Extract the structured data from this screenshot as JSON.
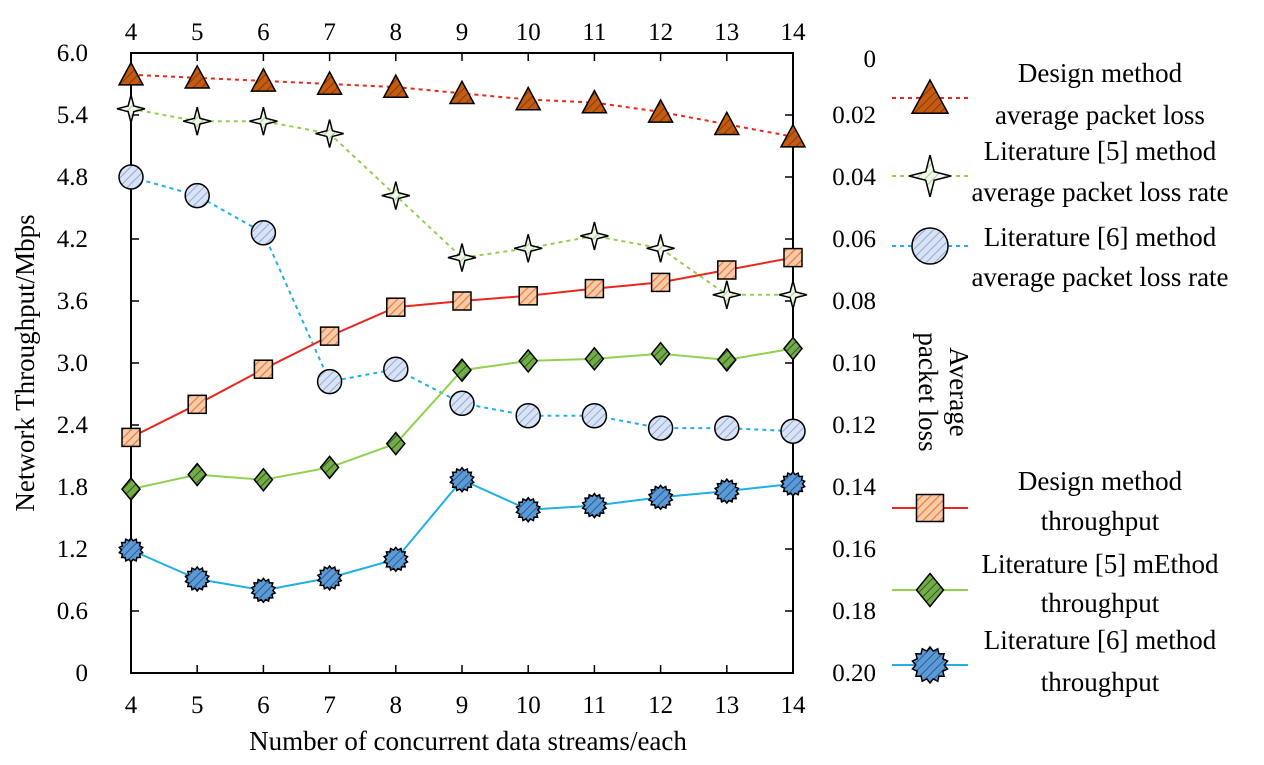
{
  "chart_data": {
    "type": "line",
    "x": [
      4,
      5,
      6,
      7,
      8,
      9,
      10,
      11,
      12,
      13,
      14
    ],
    "xlabel": "Number of concurrent data streams/each",
    "xlim": [
      4,
      14
    ],
    "x_ticks": [
      4,
      5,
      6,
      7,
      8,
      9,
      10,
      11,
      12,
      13,
      14
    ],
    "ylabel_left": "Network Throughput/Mbps",
    "ylim_left": [
      0,
      6.0
    ],
    "y_ticks_left": [
      "0",
      "0.6",
      "1.2",
      "1.8",
      "2.4",
      "3.0",
      "3.6",
      "4.2",
      "4.8",
      "5.4",
      "6.0"
    ],
    "ylabel_right": [
      "Average",
      "packet loss"
    ],
    "ylim_right": [
      0,
      0.2
    ],
    "y_right_inverted": true,
    "y_ticks_right": [
      "0",
      "0.02",
      "0.04",
      "0.06",
      "0.08",
      "0.10",
      "0.12",
      "0.14",
      "0.16",
      "0.18",
      "0.20"
    ],
    "grid": false,
    "legend_position": "right",
    "series": [
      {
        "name": [
          "Design method",
          "average packet loss"
        ],
        "axis": "right",
        "values": [
          0.007,
          0.008,
          0.009,
          0.01,
          0.011,
          0.013,
          0.015,
          0.016,
          0.019,
          0.023,
          0.027
        ],
        "color": "#e8281e",
        "dash": true,
        "marker": "triangle",
        "marker_fill": "#c55a11"
      },
      {
        "name": [
          "Literature [5] method",
          "average packet loss rate"
        ],
        "axis": "right",
        "values": [
          0.018,
          0.022,
          0.022,
          0.026,
          0.046,
          0.066,
          0.063,
          0.059,
          0.063,
          0.078,
          0.078
        ],
        "color": "#92d050",
        "dash": true,
        "marker": "star4",
        "marker_fill": "#e2efda"
      },
      {
        "name": [
          "Literature [6] method",
          "average packet loss rate"
        ],
        "axis": "right",
        "values": [
          0.04,
          0.046,
          0.058,
          0.106,
          0.102,
          0.113,
          0.117,
          0.117,
          0.121,
          0.121,
          0.122
        ],
        "color": "#1fb0e6",
        "dash": true,
        "marker": "circle",
        "marker_fill": "#b4c7e7"
      },
      {
        "name": [
          "Design method",
          "throughput"
        ],
        "axis": "left",
        "values": [
          2.28,
          2.6,
          2.94,
          3.26,
          3.54,
          3.6,
          3.65,
          3.72,
          3.78,
          3.9,
          4.02
        ],
        "color": "#e8281e",
        "dash": false,
        "marker": "square",
        "marker_fill": "#f4b183"
      },
      {
        "name": [
          "Literature [5] mEthod",
          "throughput"
        ],
        "axis": "left",
        "values": [
          1.78,
          1.92,
          1.87,
          1.99,
          2.22,
          2.93,
          3.02,
          3.04,
          3.09,
          3.03,
          3.14
        ],
        "color": "#92d050",
        "dash": false,
        "marker": "diamond",
        "marker_fill": "#548235"
      },
      {
        "name": [
          "Literature [6] method",
          "throughput"
        ],
        "axis": "left",
        "values": [
          1.19,
          0.91,
          0.8,
          0.92,
          1.1,
          1.87,
          1.58,
          1.62,
          1.7,
          1.76,
          1.83
        ],
        "color": "#1fb0e6",
        "dash": false,
        "marker": "burst",
        "marker_fill": "#4472c4"
      }
    ]
  }
}
